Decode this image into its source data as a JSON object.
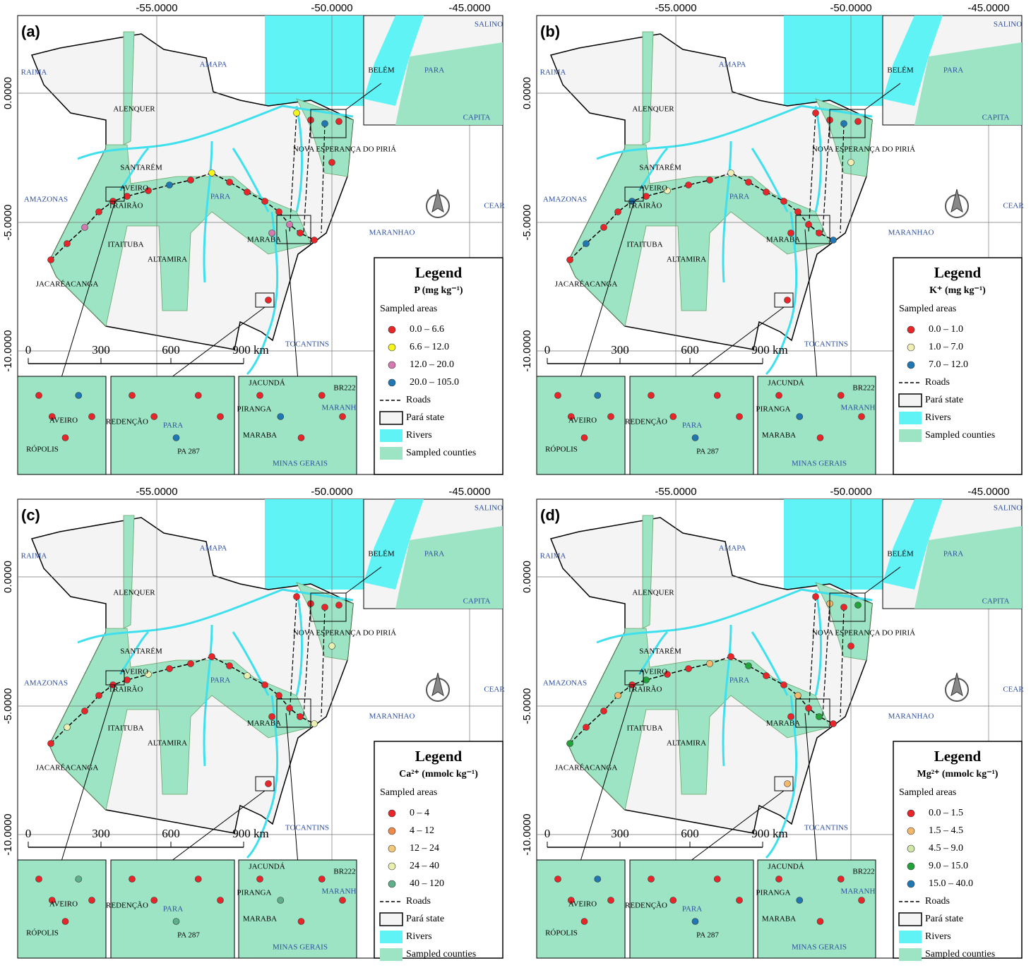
{
  "figure": {
    "panels": [
      {
        "label": "(a)",
        "legend": {
          "title": "Legend",
          "variable": "P (mg kg⁻¹)",
          "subtitle": "Sampled areas",
          "classes": [
            {
              "label": "0.0 – 6.6",
              "color": "#e8262a"
            },
            {
              "label": "6.6 – 12.0",
              "color": "#f5f51e"
            },
            {
              "label": "12.0 – 20.0",
              "color": "#d47ab0"
            },
            {
              "label": "20.0 – 105.0",
              "color": "#1f77b4"
            }
          ],
          "items": [
            "Roads",
            "Pará state",
            "Rivers",
            "Sampled counties"
          ]
        }
      },
      {
        "label": "(b)",
        "legend": {
          "title": "Legend",
          "variable": "K⁺ (mg kg⁻¹)",
          "subtitle": "Sampled areas",
          "classes": [
            {
              "label": "0.0 – 1.0",
              "color": "#e8262a"
            },
            {
              "label": "1.0 – 7.0",
              "color": "#f0eeb4"
            },
            {
              "label": "7.0 – 12.0",
              "color": "#1f77b4"
            }
          ],
          "items": [
            "Roads",
            "Pará state",
            "Rivers",
            "Sampled counties"
          ]
        }
      },
      {
        "label": "(c)",
        "legend": {
          "title": "Legend",
          "variable": "Ca²⁺ (mmolc kg⁻¹)",
          "subtitle": "Sampled areas",
          "classes": [
            {
              "label": "0 – 4",
              "color": "#e8262a"
            },
            {
              "label": "4 – 12",
              "color": "#f08a4b"
            },
            {
              "label": "12 – 24",
              "color": "#f5c97a"
            },
            {
              "label": "24 – 40",
              "color": "#e9f0b0"
            },
            {
              "label": "40 – 120",
              "color": "#5fb08a"
            }
          ],
          "items": [
            "Roads",
            "Pará state",
            "Rivers",
            "Sampled counties"
          ]
        }
      },
      {
        "label": "(d)",
        "legend": {
          "title": "Legend",
          "variable": "Mg²⁺ (mmolc kg⁻¹)",
          "subtitle": "Sampled areas",
          "classes": [
            {
              "label": "0.0 – 1.5",
              "color": "#e8262a"
            },
            {
              "label": "1.5 – 4.5",
              "color": "#f5b86a"
            },
            {
              "label": "4.5 – 9.0",
              "color": "#cfe8a8"
            },
            {
              "label": "9.0 – 15.0",
              "color": "#22a33a"
            },
            {
              "label": "15.0 – 40.0",
              "color": "#1f77b4"
            }
          ],
          "items": [
            "Roads",
            "Pará state",
            "Rivers",
            "Sampled counties"
          ]
        }
      }
    ],
    "lon_labels": [
      "-55.0000",
      "-50.0000",
      "-45.0000"
    ],
    "lat_labels": [
      "0.0000",
      "-5.0000",
      "-10.0000"
    ],
    "scale_labels": [
      "0",
      "300",
      "600",
      "900 km"
    ],
    "place_names": [
      "AMAPA",
      "ALENQUER",
      "SANTARÉM",
      "AVEIRO",
      "TRAIRÃO",
      "ITAITUBA",
      "ALTAMIRA",
      "JACARÉACANGA",
      "MARABA",
      "NOVA ESPERANÇA DO PIRIÁ",
      "AMAZONAS",
      "MARANHAO",
      "TOCANTINS",
      "PARA",
      "RAIMA",
      "CEAR"
    ],
    "inset_names": [
      "BELÉM",
      "PARA",
      "CAPITA",
      "SALINO",
      "AVEIRO",
      "RÓPOLIS",
      "REDENÇÃO",
      "PARA",
      "PA 287",
      "JACUNDÁ",
      "PIRANGA",
      "MARABA",
      "BR222",
      "MARANH",
      "MINAS GERAIS"
    ]
  }
}
